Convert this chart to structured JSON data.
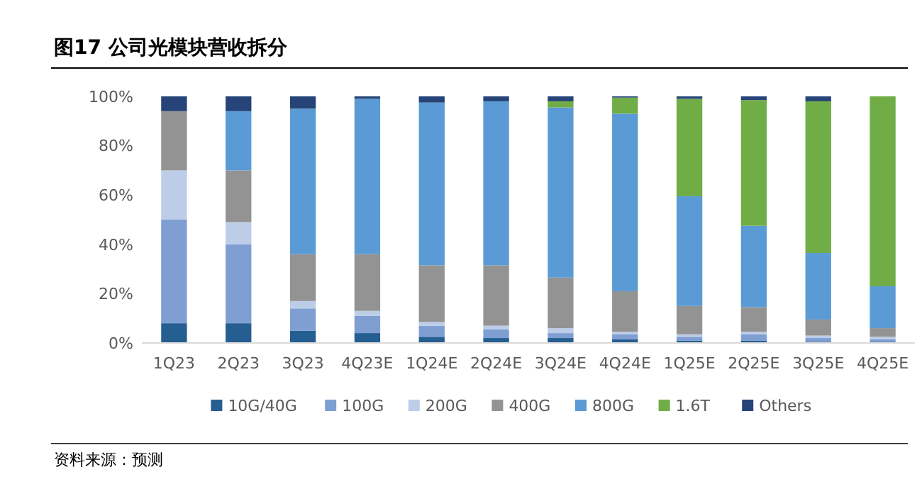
{
  "chart_data": {
    "type": "bar",
    "title": "图17 公司光模块营收拆分",
    "stacked": true,
    "legend": "bottom",
    "grid": false,
    "categories": [
      "1Q23",
      "2Q23",
      "3Q23",
      "4Q23E",
      "1Q24E",
      "2Q24E",
      "3Q24E",
      "4Q24E",
      "1Q25E",
      "2Q25E",
      "3Q25E",
      "4Q25E"
    ],
    "ylim": [
      0,
      100
    ],
    "yticks": [
      {
        "value": 0,
        "label": "0%"
      },
      {
        "value": 20,
        "label": "20%"
      },
      {
        "value": 40,
        "label": "40%"
      },
      {
        "value": 60,
        "label": "60%"
      },
      {
        "value": 80,
        "label": "80%"
      },
      {
        "value": 100,
        "label": "100%"
      }
    ],
    "series": [
      {
        "name": "10G/40G",
        "color": "#255e91",
        "values": [
          8,
          8,
          5,
          4,
          2.5,
          2,
          2,
          1.5,
          1,
          1,
          0.5,
          0.5
        ]
      },
      {
        "name": "100G",
        "color": "#7f9fd3",
        "values": [
          42,
          32,
          9,
          7,
          4.5,
          3.5,
          2,
          2,
          1.5,
          2.5,
          1.5,
          1
        ]
      },
      {
        "name": "200G",
        "color": "#bdcde8",
        "values": [
          20,
          9,
          3,
          2,
          1.5,
          1.5,
          2,
          1,
          1,
          1,
          1,
          1
        ]
      },
      {
        "name": "400G",
        "color": "#939393",
        "values": [
          24,
          21,
          19,
          23,
          23,
          24.5,
          20.5,
          16.5,
          11.5,
          10,
          6.5,
          3.5
        ]
      },
      {
        "name": "800G",
        "color": "#5b9bd5",
        "values": [
          0,
          24,
          59,
          63,
          66,
          66.5,
          69,
          72,
          44.5,
          33,
          27,
          17
        ]
      },
      {
        "name": "1.6T",
        "color": "#70ad47",
        "values": [
          0,
          0,
          0,
          0,
          0,
          0,
          2.5,
          6.5,
          39.5,
          51,
          61.5,
          77
        ]
      },
      {
        "name": "Others",
        "color": "#264478",
        "values": [
          6,
          6,
          5,
          1,
          2.5,
          2,
          2,
          0.5,
          1,
          1.5,
          2,
          0
        ]
      }
    ],
    "annotations": [
      "资料来源：预测"
    ]
  }
}
